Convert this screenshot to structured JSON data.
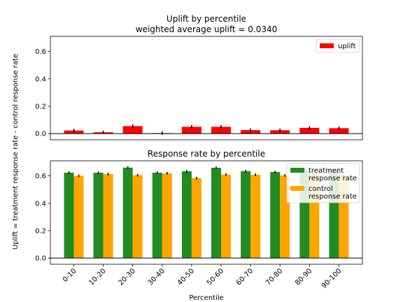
{
  "chart_data": [
    {
      "type": "bar",
      "title": "Uplift by percentile",
      "subtitle": "weighted average uplift = 0.0340",
      "ylabel": "Uplift = treatment response rate - control response rate",
      "xlabel": "",
      "categories": [
        "0-10",
        "10-20",
        "20-30",
        "30-40",
        "40-50",
        "50-60",
        "60-70",
        "70-80",
        "80-90",
        "90-100"
      ],
      "ylim": [
        -0.045,
        0.71
      ],
      "yticks": [
        "0.0",
        "0.2",
        "0.4",
        "0.6"
      ],
      "legend_position": "upper right",
      "grid": false,
      "series": [
        {
          "name": "uplift",
          "color": "#ff0000",
          "values": [
            0.023,
            0.01,
            0.055,
            0.004,
            0.05,
            0.05,
            0.026,
            0.025,
            0.042,
            0.04
          ],
          "errors": [
            0.012,
            0.012,
            0.012,
            0.012,
            0.012,
            0.012,
            0.012,
            0.012,
            0.012,
            0.012
          ]
        }
      ]
    },
    {
      "type": "bar",
      "title": "Response rate by percentile",
      "xlabel": "Percentile",
      "categories": [
        "0-10",
        "10-20",
        "20-30",
        "30-40",
        "40-50",
        "50-60",
        "60-70",
        "70-80",
        "80-90",
        "90-100"
      ],
      "ylim": [
        -0.045,
        0.71
      ],
      "yticks": [
        "0.0",
        "0.2",
        "0.4",
        "0.6"
      ],
      "legend_position": "upper right",
      "grid": false,
      "series": [
        {
          "name": "treatment\nresponse rate",
          "color": "#228b22",
          "values": [
            0.623,
            0.623,
            0.66,
            0.623,
            0.633,
            0.659,
            0.634,
            0.628,
            0.645,
            0.645
          ],
          "errors": [
            0.009,
            0.009,
            0.009,
            0.009,
            0.009,
            0.009,
            0.009,
            0.009,
            0.009,
            0.009
          ]
        },
        {
          "name": "control\nresponse rate",
          "color": "#ffa500",
          "values": [
            0.6,
            0.613,
            0.605,
            0.619,
            0.583,
            0.609,
            0.608,
            0.603,
            0.603,
            0.605
          ],
          "errors": [
            0.009,
            0.009,
            0.009,
            0.009,
            0.009,
            0.009,
            0.009,
            0.009,
            0.009,
            0.009
          ]
        }
      ]
    }
  ]
}
